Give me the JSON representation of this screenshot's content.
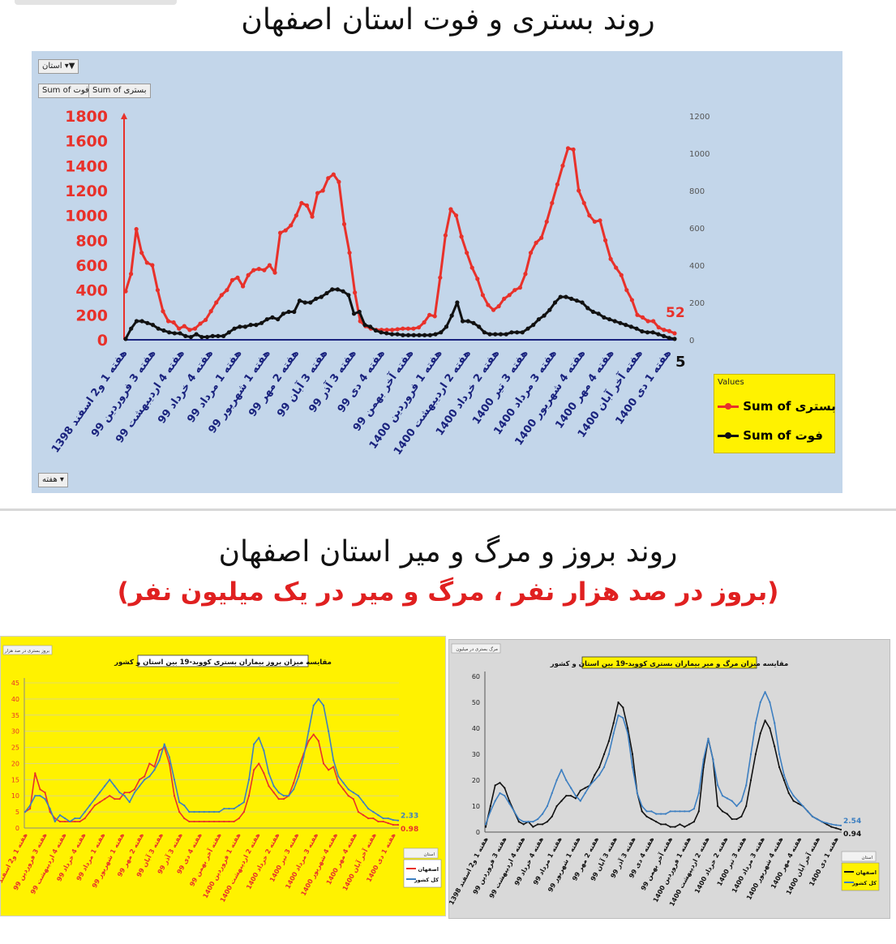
{
  "top_title": "روند بستری و فوت استان اصفهان",
  "section2_title": "روند بروز و مرگ و میر استان اصفهان",
  "section2_subtitle": "(بروز در صد هزار نفر ، مرگ و میر در یک میلیون نفر)",
  "chart1_controls": {
    "filter": "استان",
    "field1": "Sum of بستری",
    "field2": "Sum of فوت",
    "axis_field": "هفته"
  },
  "chart3_controls": {
    "filter": "استان",
    "title": "مقایسه میزان بروز بیماران بستری کووید-19 بین استان و کشور",
    "corner": "بروز بستری در صد هزار"
  },
  "chart4_controls": {
    "filter": "استان",
    "title": "مقایسه میزان مرگ و میر بیماران بستری کووید-19 بین استان و کشور",
    "corner": "مرگ بستری در میلیون"
  },
  "chart_data": [
    {
      "type": "line",
      "title": "روند بستری و فوت استان اصفهان",
      "x_tick_labels": [
        "هفته 1 و2 اسفند 1398",
        "هفته 3 فروردین 99",
        "هفته 4 اردیبهشت 99",
        "هفته 4 خرداد 99",
        "هفته 1 مرداد 99",
        "هفته 1 شهریور 99",
        "هفته 2 مهر 99",
        "هفته 3 آبان 99",
        "هفته 3 آذر 99",
        "هفته 4 دی 99",
        "هفته آخر بهمن 99",
        "هفته 1 فروردین 1400",
        "هفته 2 اردیبهشت 1400",
        "هفته 2 خرداد 1400",
        "هفته 3 تیر 1400",
        "هفته 3 مرداد 1400",
        "هفته 4 شهریور 1400",
        "هفته 4 مهر 1400",
        "هفته آخر آبان 1400",
        "هفته 1 دی 1400"
      ],
      "ylim_left": [
        0,
        1800
      ],
      "yticks_left": [
        0,
        200,
        400,
        600,
        800,
        1000,
        1200,
        1400,
        1600,
        1800
      ],
      "ylim_right": [
        0,
        1200
      ],
      "yticks_right": [
        0,
        200,
        400,
        600,
        800,
        1000,
        1200
      ],
      "legend_title": "Values",
      "legend_position": "right",
      "grid": false,
      "series": [
        {
          "name": "Sum of بستری",
          "axis": "left",
          "color": "#e8312a",
          "last_label": "52",
          "values": [
            390,
            530,
            890,
            700,
            620,
            600,
            400,
            230,
            150,
            140,
            90,
            110,
            80,
            90,
            130,
            160,
            230,
            300,
            360,
            400,
            480,
            500,
            430,
            520,
            560,
            570,
            560,
            600,
            540,
            860,
            880,
            920,
            1000,
            1100,
            1080,
            990,
            1180,
            1200,
            1300,
            1330,
            1270,
            930,
            700,
            380,
            150,
            110,
            90,
            80,
            80,
            80,
            80,
            85,
            90,
            90,
            90,
            100,
            140,
            200,
            190,
            500,
            840,
            1050,
            1000,
            830,
            700,
            580,
            490,
            360,
            280,
            240,
            270,
            330,
            360,
            400,
            420,
            530,
            700,
            780,
            820,
            950,
            1100,
            1250,
            1400,
            1540,
            1530,
            1200,
            1100,
            1000,
            950,
            960,
            800,
            650,
            580,
            520,
            400,
            320,
            200,
            180,
            150,
            150,
            100,
            80,
            70,
            52
          ]
        },
        {
          "name": "Sum of فوت",
          "axis": "right",
          "color": "#111111",
          "values": [
            5,
            60,
            100,
            100,
            90,
            80,
            60,
            50,
            40,
            35,
            35,
            20,
            15,
            30,
            15,
            15,
            20,
            20,
            20,
            40,
            60,
            70,
            70,
            80,
            80,
            90,
            110,
            120,
            110,
            140,
            150,
            150,
            210,
            200,
            200,
            220,
            230,
            250,
            270,
            270,
            260,
            240,
            140,
            150,
            80,
            70,
            50,
            40,
            35,
            30,
            30,
            25,
            25,
            25,
            25,
            25,
            25,
            30,
            40,
            70,
            130,
            200,
            100,
            100,
            90,
            70,
            40,
            30,
            30,
            30,
            30,
            40,
            40,
            40,
            60,
            80,
            110,
            130,
            160,
            200,
            230,
            230,
            220,
            210,
            200,
            170,
            150,
            140,
            120,
            110,
            100,
            90,
            80,
            70,
            60,
            45,
            40,
            40,
            30,
            20,
            10,
            5
          ]
        }
      ],
      "right_axis_end_label": "5"
    },
    {
      "type": "line",
      "title": "مقایسه میزان بروز بیماران بستری کووید-19 بین استان و کشور",
      "ylim": [
        0,
        45
      ],
      "yticks": [
        0,
        5,
        10,
        15,
        20,
        25,
        30,
        35,
        40,
        45
      ],
      "legend_position": "right",
      "series": [
        {
          "name": "اصفهان",
          "color": "#e8312a",
          "end_label": "0.98",
          "values": [
            5,
            6,
            17,
            12,
            11,
            5,
            3,
            2,
            2,
            2,
            2,
            2,
            3,
            5,
            7,
            8,
            9,
            10,
            9,
            9,
            11,
            11,
            12,
            15,
            16,
            20,
            19,
            24,
            25,
            20,
            10,
            5,
            3,
            2,
            2,
            2,
            2,
            2,
            2,
            2,
            2,
            2,
            2,
            3,
            5,
            10,
            18,
            20,
            17,
            13,
            11,
            9,
            9,
            10,
            14,
            19,
            23,
            27,
            29,
            27,
            20,
            18,
            19,
            14,
            12,
            10,
            9,
            5,
            4,
            3,
            3,
            2,
            2,
            1.5,
            1,
            0.98
          ]
        },
        {
          "name": "کل کشور",
          "color": "#3d7fc1",
          "end_label": "2.33",
          "values": [
            5,
            7,
            10,
            10,
            9,
            6,
            2,
            4,
            3,
            2,
            3,
            3,
            5,
            7,
            9,
            11,
            13,
            15,
            13,
            11,
            10,
            8,
            11,
            13,
            15,
            16,
            18,
            21,
            26,
            22,
            15,
            8,
            7,
            5,
            5,
            5,
            5,
            5,
            5,
            5,
            6,
            6,
            6,
            7,
            8,
            15,
            26,
            28,
            24,
            17,
            13,
            11,
            10,
            10,
            12,
            16,
            22,
            30,
            38,
            40,
            38,
            30,
            21,
            16,
            14,
            12,
            11,
            10,
            8,
            6,
            5,
            4,
            3,
            3,
            2.5,
            2.33
          ]
        }
      ]
    },
    {
      "type": "line",
      "title": "مقایسه میزان مرگ و میر بیماران بستری کووید-19 بین استان و کشور",
      "ylim": [
        0,
        60
      ],
      "yticks": [
        0,
        10,
        20,
        30,
        40,
        50,
        60
      ],
      "legend_position": "right",
      "series": [
        {
          "name": "اصفهان",
          "color": "#111111",
          "end_label": "0.94",
          "values": [
            2,
            10,
            18,
            19,
            17,
            12,
            8,
            4,
            3,
            4,
            2,
            3,
            3,
            4,
            6,
            10,
            12,
            14,
            14,
            13,
            16,
            17,
            18,
            22,
            25,
            30,
            35,
            42,
            50,
            48,
            40,
            30,
            15,
            8,
            6,
            5,
            4,
            3,
            3,
            2,
            2,
            3,
            2,
            3,
            4,
            8,
            25,
            36,
            28,
            10,
            8,
            7,
            5,
            5,
            6,
            10,
            20,
            30,
            38,
            43,
            40,
            33,
            25,
            20,
            15,
            12,
            11,
            10,
            8,
            6,
            5,
            4,
            3,
            2,
            1.5,
            0.94
          ]
        },
        {
          "name": "کل کشور",
          "color": "#3d7fc1",
          "end_label": "2.54",
          "values": [
            3,
            8,
            12,
            15,
            14,
            11,
            8,
            5,
            4,
            4,
            4,
            5,
            7,
            10,
            15,
            20,
            24,
            20,
            17,
            14,
            12,
            15,
            18,
            20,
            22,
            25,
            30,
            38,
            45,
            44,
            38,
            25,
            15,
            10,
            8,
            8,
            7,
            7,
            7,
            8,
            8,
            8,
            8,
            8,
            9,
            15,
            28,
            36,
            28,
            18,
            14,
            13,
            12,
            10,
            12,
            18,
            30,
            42,
            50,
            54,
            50,
            42,
            30,
            22,
            17,
            14,
            12,
            10,
            8,
            6,
            5,
            4,
            3.5,
            3,
            2.7,
            2.54
          ]
        }
      ]
    }
  ]
}
